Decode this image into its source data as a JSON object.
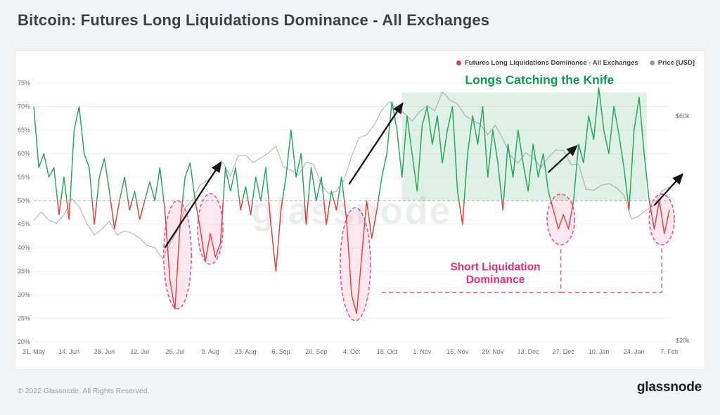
{
  "page": {
    "title": "Bitcoin: Futures Long Liquidations Dominance - All Exchanges",
    "watermark": "glassnode",
    "footer": {
      "copyright": "© 2022 Glassnode. All Rights Reserved.",
      "brand": "glassnode"
    }
  },
  "legend": {
    "items": [
      {
        "label": "Futures Long Liquidations Dominance - All Exchanges",
        "color": "#e8403a"
      },
      {
        "label": "Price [USD]",
        "color": "#9b9b9b"
      }
    ]
  },
  "chart_data": {
    "type": "line",
    "title": "Bitcoin: Futures Long Liquidations Dominance - All Exchanges",
    "x_tick_labels": [
      "31. May",
      "14. Jun",
      "28. Jun",
      "12. Jul",
      "26. Jul",
      "9. Aug",
      "23. Aug",
      "6. Sep",
      "20. Sep",
      "4. Oct",
      "18. Oct",
      "1. Nov",
      "15. Nov",
      "29. Nov",
      "13. Dec",
      "27. Dec",
      "10. Jan",
      "24. Jan",
      "7. Feb"
    ],
    "x_tick_interval_days": 14,
    "x_span_days": 252,
    "y_left": {
      "unit": "%",
      "min": 20,
      "max": 75,
      "ticks": [
        {
          "label": "75%",
          "value": 75
        },
        {
          "label": "70%",
          "value": 70
        },
        {
          "label": "65%",
          "value": 65
        },
        {
          "label": "60%",
          "value": 60
        },
        {
          "label": "55%",
          "value": 55
        },
        {
          "label": "50%",
          "value": 50
        },
        {
          "label": "45%",
          "value": 45
        },
        {
          "label": "40%",
          "value": 40
        },
        {
          "label": "35%",
          "value": 35
        },
        {
          "label": "30%",
          "value": 30
        },
        {
          "label": "25%",
          "value": 25
        },
        {
          "label": "20%",
          "value": 20
        }
      ]
    },
    "y_right": {
      "scale": "log",
      "ticks": [
        {
          "label": "$60k",
          "value": 60000
        },
        {
          "label": "$20k",
          "value": 20000
        }
      ]
    },
    "threshold": {
      "value": 50,
      "style": "dashed"
    },
    "series": [
      {
        "name": "Futures Long Liquidations Dominance - All Exchanges",
        "axis": "left",
        "unit": "%",
        "step_days": 2,
        "color_above": "#2aa660",
        "color_below": "#e8403a",
        "values": [
          70,
          57,
          60,
          55,
          57,
          47,
          55,
          46,
          65,
          70,
          60,
          57,
          45,
          55,
          59,
          52,
          44,
          50,
          55,
          48,
          52,
          46,
          50,
          54,
          50,
          57,
          48,
          33,
          27,
          45,
          55,
          58,
          50,
          44,
          37,
          43,
          38,
          41,
          57,
          52,
          57,
          48,
          53,
          47,
          55,
          50,
          57,
          45,
          35,
          48,
          55,
          65,
          55,
          60,
          45,
          57,
          50,
          55,
          45,
          52,
          48,
          55,
          46,
          30,
          26,
          38,
          50,
          42,
          48,
          55,
          60,
          71,
          65,
          55,
          68,
          60,
          52,
          66,
          70,
          62,
          68,
          58,
          65,
          70,
          52,
          45,
          60,
          68,
          62,
          70,
          55,
          65,
          58,
          48,
          62,
          55,
          65,
          58,
          52,
          62,
          55,
          60,
          52,
          48,
          44,
          47,
          44,
          50,
          62,
          58,
          68,
          63,
          74,
          65,
          60,
          70,
          64,
          57,
          48,
          65,
          72,
          60,
          50,
          44,
          50,
          43,
          48
        ]
      },
      {
        "name": "Price [USD]",
        "axis": "right",
        "unit": "USD",
        "step_days": 3,
        "color": "#b3b3b3",
        "values": [
          36000,
          37500,
          36000,
          35500,
          37000,
          40000,
          38500,
          35500,
          33500,
          34500,
          35800,
          33500,
          34200,
          33800,
          33000,
          31800,
          31500,
          29800,
          32100,
          34300,
          38200,
          39900,
          42800,
          43800,
          45600,
          47800,
          44700,
          49300,
          49500,
          47700,
          48900,
          50000,
          51800,
          46800,
          46000,
          44900,
          47800,
          47300,
          42800,
          41000,
          41500,
          43800,
          49200,
          53900,
          54700,
          57400,
          61700,
          64300,
          62300,
          60700,
          58500,
          61300,
          63100,
          61500,
          67500,
          64800,
          63600,
          60100,
          58700,
          57600,
          54700,
          57300,
          53600,
          49400,
          47600,
          50100,
          48900,
          46700,
          48900,
          50800,
          50700,
          47300,
          47300,
          41900,
          41700,
          42700,
          43100,
          42200,
          40700,
          36200,
          36800,
          37900,
          38700,
          41500,
          42400
        ]
      }
    ],
    "annotations": {
      "green_box": {
        "day_range": [
          146,
          243
        ],
        "pct_range": [
          50,
          73
        ],
        "fill": "rgba(57,170,101,0.16)"
      },
      "labels": [
        {
          "name": "longs-catching-knife-label",
          "text": "Longs Catching the Knife",
          "color": "#0b9e4e",
          "day": 200.5,
          "pct": 74.8,
          "size": 17.5
        },
        {
          "name": "short-liquidation-dominance-label",
          "lines": [
            "Short Liquidation",
            "Dominance"
          ],
          "color": "#ee2d78",
          "day": 183,
          "pct": 35.2,
          "size": 15.5
        }
      ],
      "ellipses": [
        {
          "day": 57,
          "pct": 38.5,
          "rx_days": 5.5,
          "ry_pct": 11.5
        },
        {
          "day": 70,
          "pct": 44,
          "rx_days": 5,
          "ry_pct": 7.5
        },
        {
          "day": 127.5,
          "pct": 36.5,
          "rx_days": 6,
          "ry_pct": 12
        },
        {
          "day": 209,
          "pct": 46,
          "rx_days": 5.5,
          "ry_pct": 5.4
        },
        {
          "day": 249,
          "pct": 46,
          "rx_days": 5,
          "ry_pct": 5.4
        }
      ],
      "arrows": [
        {
          "from": [
            52,
            40
          ],
          "to": [
            74,
            58
          ]
        },
        {
          "from": [
            125,
            53.5
          ],
          "to": [
            146,
            70.5
          ]
        },
        {
          "from": [
            204,
            56
          ],
          "to": [
            215,
            61.5
          ]
        },
        {
          "from": [
            246,
            49
          ],
          "to": [
            257,
            55.5
          ]
        }
      ],
      "connector": {
        "color": "#f2478d",
        "segments": [
          [
            [
              138,
              30.5
            ],
            [
              209,
              30.5
            ],
            [
              209,
              40.2
            ]
          ],
          [
            [
              209,
              30.5
            ],
            [
              249,
              30.5
            ],
            [
              249,
              40.2
            ]
          ]
        ]
      }
    }
  }
}
